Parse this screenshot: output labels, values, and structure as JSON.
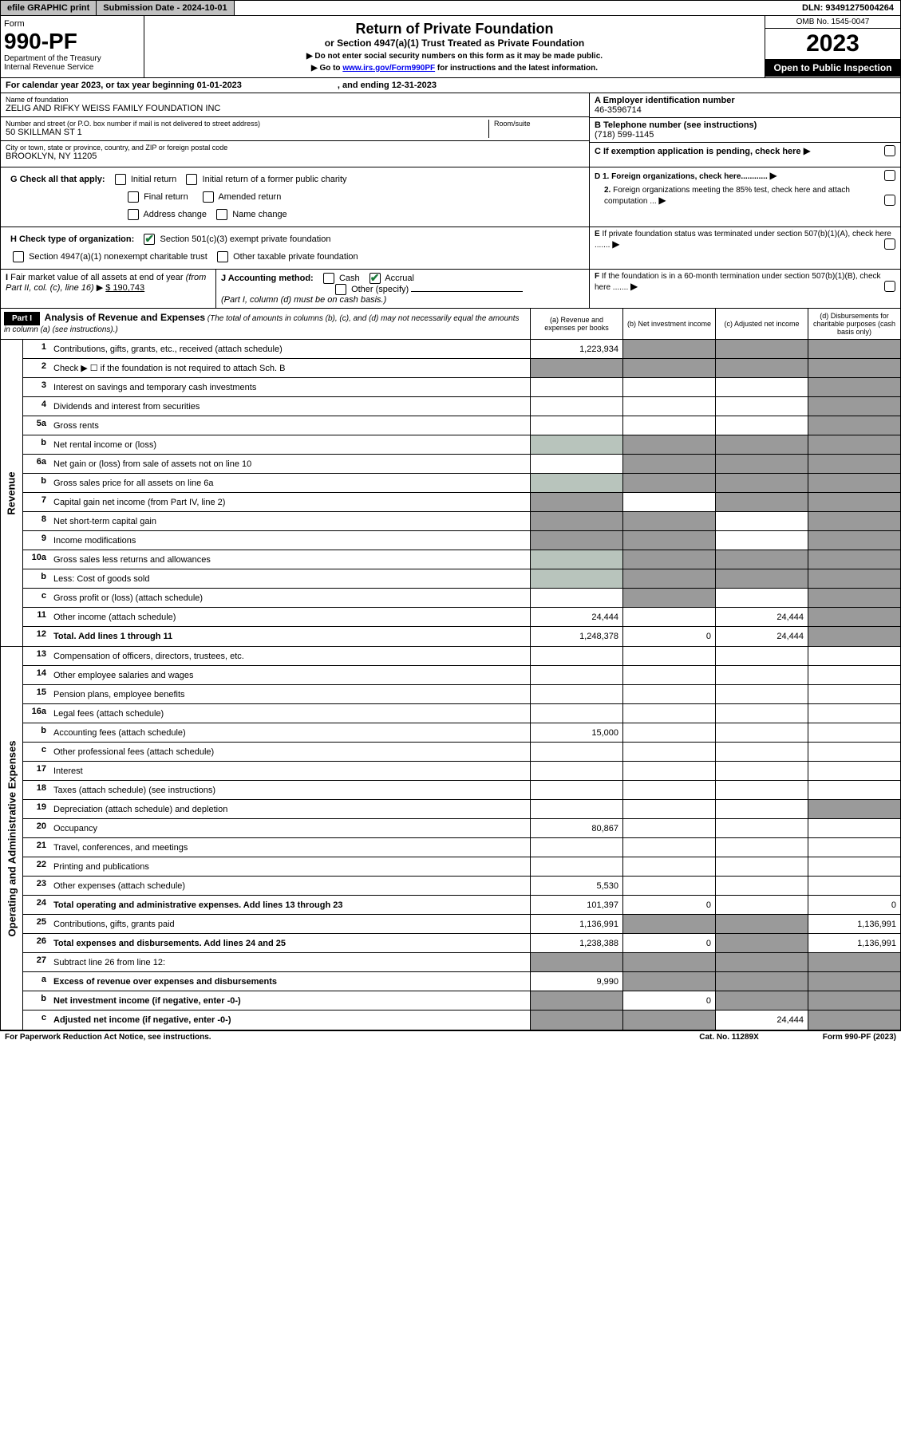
{
  "topbar": {
    "efile": "efile GRAPHIC print",
    "subdate": "Submission Date - 2024-10-01",
    "dln": "DLN: 93491275004264"
  },
  "formhdr": {
    "form_lbl": "Form",
    "form_num": "990-PF",
    "dept": "Department of the Treasury",
    "irs": "Internal Revenue Service",
    "title": "Return of Private Foundation",
    "subtitle": "or Section 4947(a)(1) Trust Treated as Private Foundation",
    "instr1": "▶ Do not enter social security numbers on this form as it may be made public.",
    "instr2": "▶ Go to www.irs.gov/Form990PF for instructions and the latest information.",
    "omb": "OMB No. 1545-0047",
    "year": "2023",
    "open": "Open to Public Inspection"
  },
  "cal": {
    "text": "For calendar year 2023, or tax year beginning 01-01-2023",
    "end": ", and ending 12-31-2023"
  },
  "ident": {
    "name_lbl": "Name of foundation",
    "name": "ZELIG AND RIFKY WEISS FAMILY FOUNDATION INC",
    "addr_lbl": "Number and street (or P.O. box number if mail is not delivered to street address)",
    "addr": "50 SKILLMAN ST 1",
    "room_lbl": "Room/suite",
    "city_lbl": "City or town, state or province, country, and ZIP or foreign postal code",
    "city": "BROOKLYN, NY  11205",
    "a_lbl": "A Employer identification number",
    "a_val": "46-3596714",
    "b_lbl": "B Telephone number (see instructions)",
    "b_val": "(718) 599-1145",
    "c_lbl": "C If exemption application is pending, check here"
  },
  "g": {
    "lbl": "G Check all that apply:",
    "initial": "Initial return",
    "initial_former": "Initial return of a former public charity",
    "final": "Final return",
    "amended": "Amended return",
    "addr": "Address change",
    "name": "Name change"
  },
  "h": {
    "lbl": "H Check type of organization:",
    "sec501": "Section 501(c)(3) exempt private foundation",
    "sec4947": "Section 4947(a)(1) nonexempt charitable trust",
    "other": "Other taxable private foundation"
  },
  "i": {
    "lbl": "I Fair market value of all assets at end of year (from Part II, col. (c), line 16)",
    "val": "$  190,743"
  },
  "j": {
    "lbl": "J Accounting method:",
    "cash": "Cash",
    "accrual": "Accrual",
    "other": "Other (specify)",
    "note": "(Part I, column (d) must be on cash basis.)"
  },
  "d": {
    "d1": "D 1. Foreign organizations, check here............",
    "d2": "2. Foreign organizations meeting the 85% test, check here and attach computation ..."
  },
  "e": {
    "lbl": "E  If private foundation status was terminated under section 507(b)(1)(A), check here ......."
  },
  "f": {
    "lbl": "F  If the foundation is in a 60-month termination under section 507(b)(1)(B), check here ......."
  },
  "part1": {
    "bar": "Part I",
    "title": "Analysis of Revenue and Expenses",
    "note": "(The total of amounts in columns (b), (c), and (d) may not necessarily equal the amounts in column (a) (see instructions).)",
    "col_a": "(a)   Revenue and expenses per books",
    "col_b": "(b)   Net investment income",
    "col_c": "(c)   Adjusted net income",
    "col_d": "(d)  Disbursements for charitable purposes (cash basis only)"
  },
  "sections": {
    "revenue": "Revenue",
    "expenses": "Operating and Administrative Expenses"
  },
  "lines": {
    "l1": {
      "n": "1",
      "t": "Contributions, gifts, grants, etc., received (attach schedule)",
      "a": "1,223,934"
    },
    "l2": {
      "n": "2",
      "t": "Check ▶ ☐ if the foundation is not required to attach Sch. B"
    },
    "l3": {
      "n": "3",
      "t": "Interest on savings and temporary cash investments"
    },
    "l4": {
      "n": "4",
      "t": "Dividends and interest from securities"
    },
    "l5a": {
      "n": "5a",
      "t": "Gross rents"
    },
    "l5b": {
      "n": "b",
      "t": "Net rental income or (loss)"
    },
    "l6a": {
      "n": "6a",
      "t": "Net gain or (loss) from sale of assets not on line 10"
    },
    "l6b": {
      "n": "b",
      "t": "Gross sales price for all assets on line 6a"
    },
    "l7": {
      "n": "7",
      "t": "Capital gain net income (from Part IV, line 2)"
    },
    "l8": {
      "n": "8",
      "t": "Net short-term capital gain"
    },
    "l9": {
      "n": "9",
      "t": "Income modifications"
    },
    "l10a": {
      "n": "10a",
      "t": "Gross sales less returns and allowances"
    },
    "l10b": {
      "n": "b",
      "t": "Less: Cost of goods sold"
    },
    "l10c": {
      "n": "c",
      "t": "Gross profit or (loss) (attach schedule)"
    },
    "l11": {
      "n": "11",
      "t": "Other income (attach schedule)",
      "a": "24,444",
      "c": "24,444"
    },
    "l12": {
      "n": "12",
      "t": "Total. Add lines 1 through 11",
      "a": "1,248,378",
      "b": "0",
      "c": "24,444"
    },
    "l13": {
      "n": "13",
      "t": "Compensation of officers, directors, trustees, etc."
    },
    "l14": {
      "n": "14",
      "t": "Other employee salaries and wages"
    },
    "l15": {
      "n": "15",
      "t": "Pension plans, employee benefits"
    },
    "l16a": {
      "n": "16a",
      "t": "Legal fees (attach schedule)"
    },
    "l16b": {
      "n": "b",
      "t": "Accounting fees (attach schedule)",
      "a": "15,000"
    },
    "l16c": {
      "n": "c",
      "t": "Other professional fees (attach schedule)"
    },
    "l17": {
      "n": "17",
      "t": "Interest"
    },
    "l18": {
      "n": "18",
      "t": "Taxes (attach schedule) (see instructions)"
    },
    "l19": {
      "n": "19",
      "t": "Depreciation (attach schedule) and depletion"
    },
    "l20": {
      "n": "20",
      "t": "Occupancy",
      "a": "80,867"
    },
    "l21": {
      "n": "21",
      "t": "Travel, conferences, and meetings"
    },
    "l22": {
      "n": "22",
      "t": "Printing and publications"
    },
    "l23": {
      "n": "23",
      "t": "Other expenses (attach schedule)",
      "a": "5,530"
    },
    "l24": {
      "n": "24",
      "t": "Total operating and administrative expenses. Add lines 13 through 23",
      "a": "101,397",
      "b": "0",
      "d": "0"
    },
    "l25": {
      "n": "25",
      "t": "Contributions, gifts, grants paid",
      "a": "1,136,991",
      "d": "1,136,991"
    },
    "l26": {
      "n": "26",
      "t": "Total expenses and disbursements. Add lines 24 and 25",
      "a": "1,238,388",
      "b": "0",
      "d": "1,136,991"
    },
    "l27": {
      "n": "27",
      "t": "Subtract line 26 from line 12:"
    },
    "l27a": {
      "n": "a",
      "t": "Excess of revenue over expenses and disbursements",
      "a": "9,990"
    },
    "l27b": {
      "n": "b",
      "t": "Net investment income (if negative, enter -0-)",
      "b": "0"
    },
    "l27c": {
      "n": "c",
      "t": "Adjusted net income (if negative, enter -0-)",
      "c": "24,444"
    }
  },
  "footer": {
    "left": "For Paperwork Reduction Act Notice, see instructions.",
    "mid": "Cat. No. 11289X",
    "right": "Form 990-PF (2023)"
  },
  "colors": {
    "dark_cell": "#9a9a9a",
    "grey_cell": "#b8c4bc",
    "black": "#000000",
    "link": "#0000ee"
  }
}
